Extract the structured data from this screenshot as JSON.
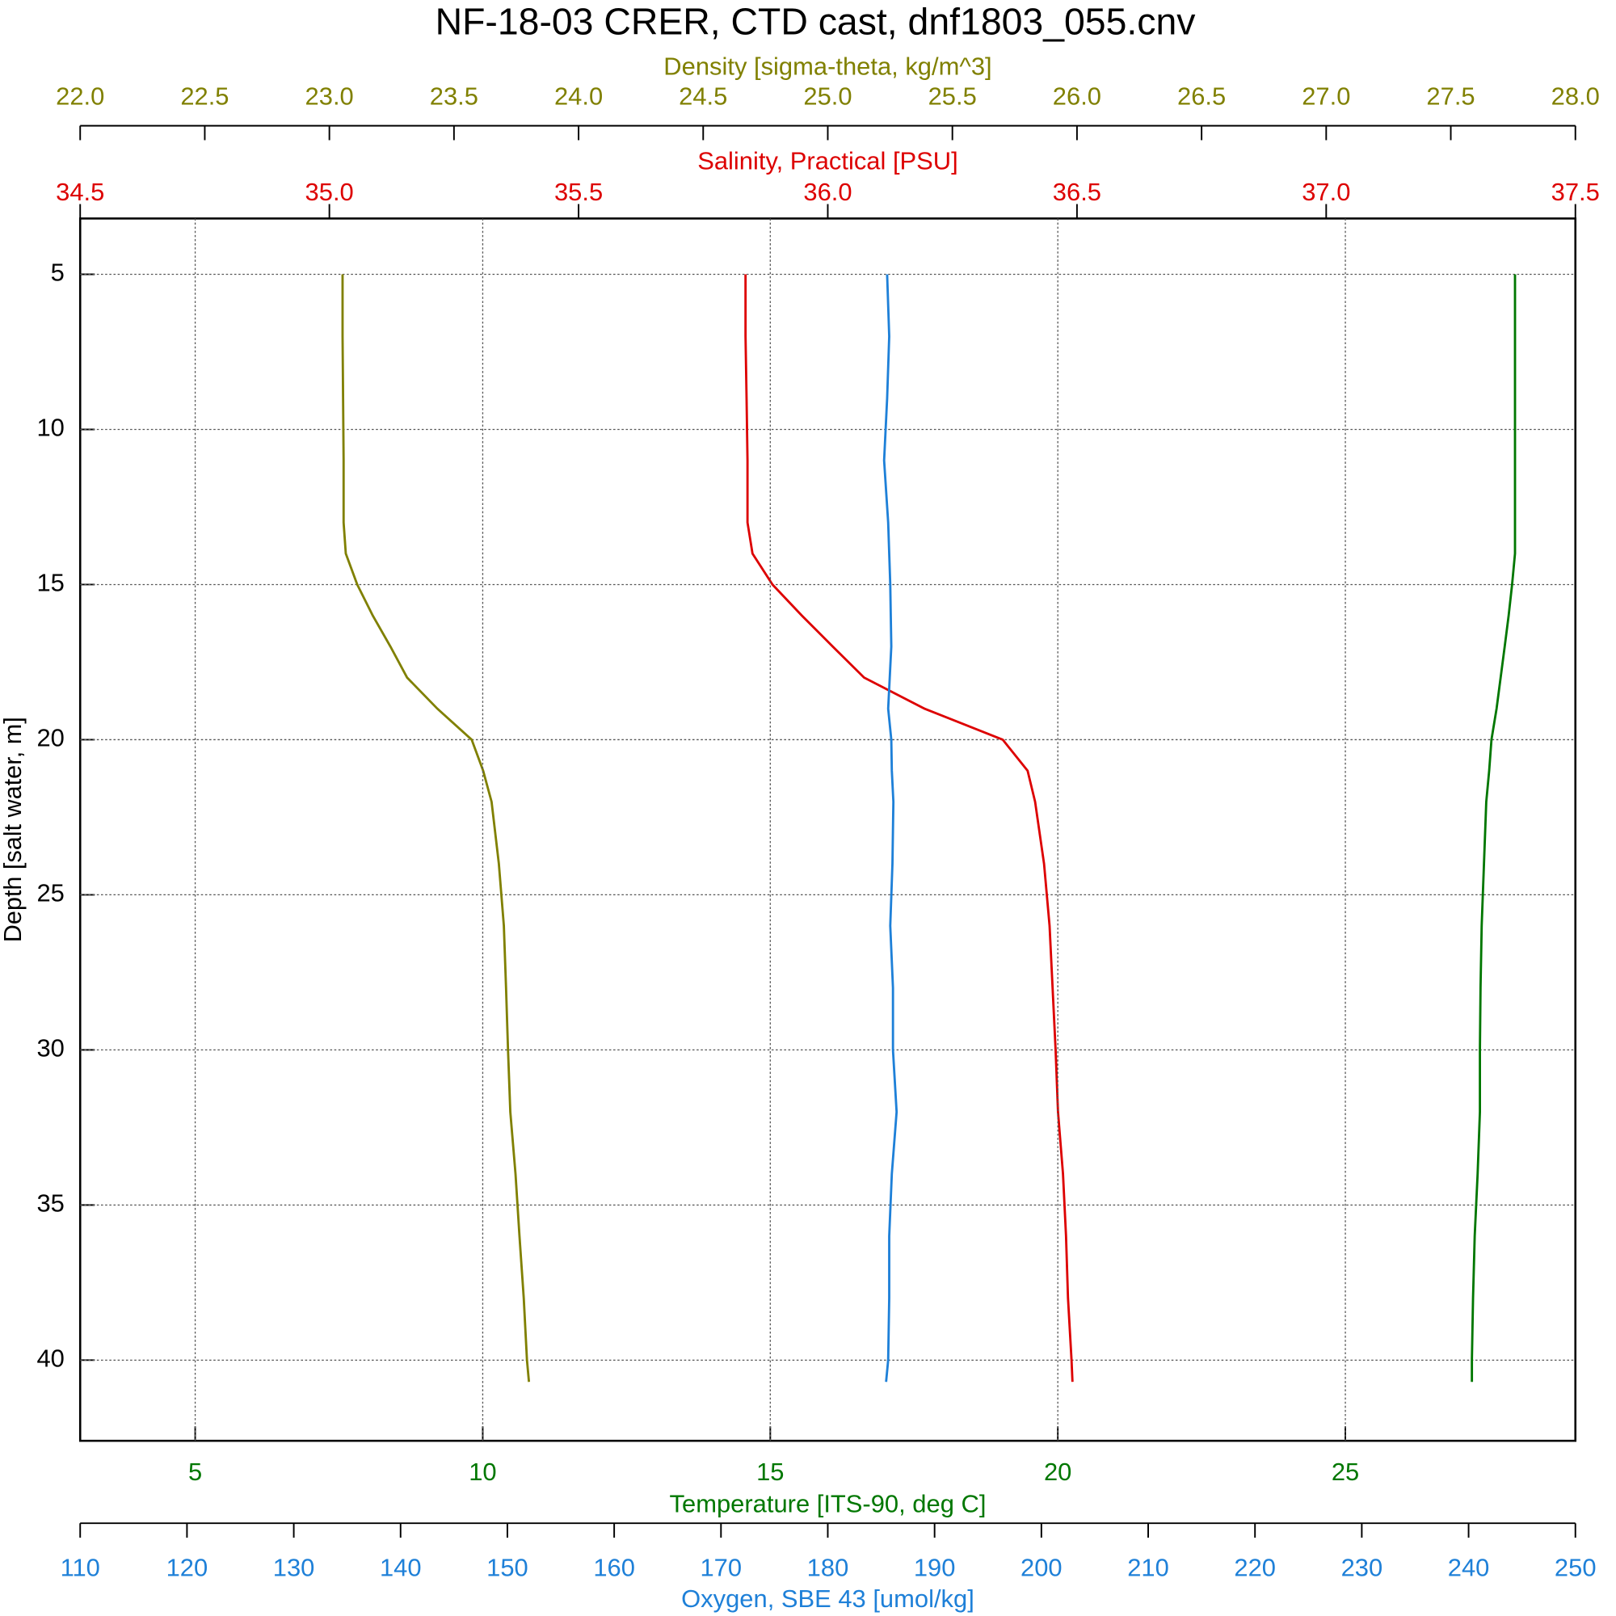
{
  "chart_data": {
    "type": "line",
    "title": "NF-18-03 CRER, CTD cast, dnf1803_055.cnv",
    "y_label": "Depth [salt water, m]",
    "y_inverted": true,
    "ylim": [
      3.2,
      42.6
    ],
    "yticks": [
      5,
      10,
      15,
      20,
      25,
      30,
      35,
      40
    ],
    "grid": true,
    "depth": [
      5,
      7,
      9,
      11,
      13,
      14,
      15,
      16,
      17,
      18,
      19,
      20,
      21,
      22,
      24,
      26,
      28,
      30,
      32,
      34,
      36,
      38,
      40,
      40.7
    ],
    "x_axes": [
      {
        "label": "Density [sigma-theta, kg/m^3]",
        "color": "#808000",
        "xlim": [
          22,
          28
        ],
        "xticks": [
          {
            "value": 22,
            "label": "22.0"
          },
          22.5,
          {
            "value": 23,
            "label": "23.0"
          },
          23.5,
          {
            "value": 24,
            "label": "24.0"
          },
          24.5,
          {
            "value": 25,
            "label": "25.0"
          },
          25.5,
          {
            "value": 26,
            "label": "26.0"
          },
          26.5,
          {
            "value": 27,
            "label": "27.0"
          },
          27.5,
          {
            "value": 28,
            "label": "28.0"
          }
        ],
        "values": [
          23.053,
          23.053,
          23.055,
          23.057,
          23.057,
          23.066,
          23.112,
          23.174,
          23.245,
          23.312,
          23.433,
          23.571,
          23.617,
          23.651,
          23.68,
          23.7,
          23.709,
          23.717,
          23.726,
          23.747,
          23.763,
          23.78,
          23.793,
          23.801
        ]
      },
      {
        "label": "Salinity, Practical [PSU]",
        "color": "#dd0000",
        "xlim": [
          34.5,
          37.5
        ],
        "xticks": [
          34.5,
          {
            "value": 35,
            "label": "35.0"
          },
          35.5,
          {
            "value": 36,
            "label": "36.0"
          },
          36.5,
          {
            "value": 37,
            "label": "37.0"
          },
          37.5
        ],
        "values": [
          35.835,
          35.835,
          35.837,
          35.839,
          35.839,
          35.849,
          35.889,
          35.948,
          36.01,
          36.073,
          36.194,
          36.351,
          36.401,
          36.416,
          36.434,
          36.445,
          36.451,
          36.457,
          36.462,
          36.472,
          36.478,
          36.482,
          36.489,
          36.491
        ]
      },
      {
        "label": "Temperature [ITS-90, deg C]",
        "color": "#007700",
        "xlim": [
          3.0,
          29.0
        ],
        "xticks": [
          5,
          10,
          15,
          20,
          25
        ],
        "grid": true,
        "values": [
          27.95,
          27.95,
          27.95,
          27.95,
          27.95,
          27.95,
          27.9,
          27.84,
          27.77,
          27.7,
          27.63,
          27.54,
          27.5,
          27.45,
          27.41,
          27.37,
          27.35,
          27.34,
          27.34,
          27.3,
          27.25,
          27.22,
          27.2,
          27.2
        ]
      },
      {
        "label": "Oxygen, SBE 43 [umol/kg]",
        "color": "#1e80d8",
        "xlim": [
          110,
          250
        ],
        "xticks": [
          110,
          120,
          130,
          140,
          150,
          160,
          170,
          180,
          190,
          200,
          210,
          220,
          230,
          240,
          250
        ],
        "values": [
          185.56,
          185.75,
          185.56,
          185.27,
          185.65,
          185.75,
          185.85,
          185.9,
          185.95,
          185.8,
          185.65,
          185.95,
          186.0,
          186.14,
          186.05,
          185.85,
          186.1,
          186.1,
          186.44,
          186.0,
          185.75,
          185.75,
          185.65,
          185.46
        ]
      }
    ]
  }
}
